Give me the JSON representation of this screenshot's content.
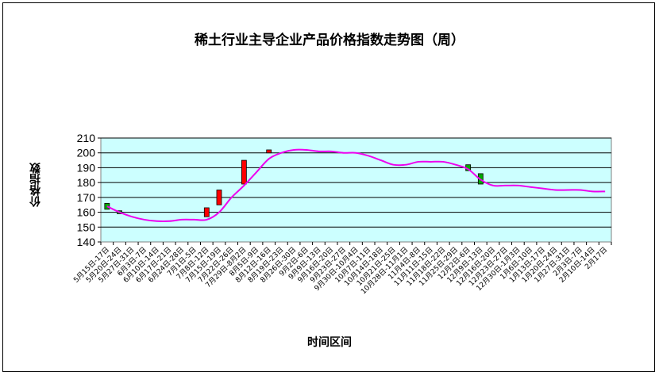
{
  "chart_data": {
    "type": "line",
    "title": "稀土行业主导企业产品价格指数走势图（周）",
    "xlabel": "时间区间",
    "ylabel": "价格指数",
    "ylim": [
      140,
      210
    ],
    "yticks": [
      140,
      150,
      160,
      170,
      180,
      190,
      200,
      210
    ],
    "grid": true,
    "categories": [
      "5月15日-17日",
      "5月20日-24日",
      "5月27日-31日",
      "6月3日-7日",
      "6月10日-14日",
      "6月17日-21日",
      "6月24日-28日",
      "7月1日-5日",
      "7月8日-12日",
      "7月15日-19日",
      "7月22日-26日",
      "7月29日-8月2日",
      "8月5日-9日",
      "8月12日-16日",
      "8月19日-23日",
      "8月26日-30日",
      "9月2日-6日",
      "9月9日-13日",
      "9月16日-20日",
      "9月23日-27日",
      "9月30日-10月4日",
      "10月7日-11日",
      "10月14日-18日",
      "10月21日-25日",
      "10月28日-11月1日",
      "11月4日-8日",
      "11月11日-15日",
      "11月18日-22日",
      "11月25日-29日",
      "12月2日-6日",
      "12月9日-13日",
      "12月16日-20日",
      "12月23日-27日",
      "12月30日-1月3日",
      "1月6日-10日",
      "1月13日-17日",
      "1月20日-24日",
      "1月27日-31日",
      "2月3日-7日",
      "2月10日-14日",
      "2月17日"
    ],
    "series": [
      {
        "values": [
          164,
          160,
          157,
          155,
          154,
          154,
          155,
          155,
          155,
          160,
          170,
          178,
          187,
          196,
          200,
          202,
          202,
          201,
          201,
          200,
          200,
          198,
          195,
          192,
          192,
          194,
          194,
          194,
          192,
          189,
          182,
          178,
          178,
          178,
          177,
          176,
          175,
          175,
          175,
          174,
          174
        ],
        "color": "#ee00ee"
      }
    ],
    "candles": [
      {
        "index": 0,
        "open": 162,
        "close": 166,
        "rising": true
      },
      {
        "index": 1,
        "open": 159,
        "close": 161,
        "rising": true
      },
      {
        "index": 8,
        "open": 157,
        "close": 163,
        "rising": false
      },
      {
        "index": 9,
        "open": 165,
        "close": 175,
        "rising": false
      },
      {
        "index": 11,
        "open": 179,
        "close": 195,
        "rising": false
      },
      {
        "index": 13,
        "open": 200,
        "close": 202,
        "rising": false
      },
      {
        "index": 29,
        "open": 188,
        "close": 192,
        "rising": true
      },
      {
        "index": 30,
        "open": 179,
        "close": 186,
        "rising": true
      }
    ],
    "colors": {
      "plot_background": "#ccffff",
      "line": "#ee00ee",
      "candle_rising": "#00aa00",
      "candle_falling": "#ff0000",
      "candle_border": "#000000"
    }
  }
}
